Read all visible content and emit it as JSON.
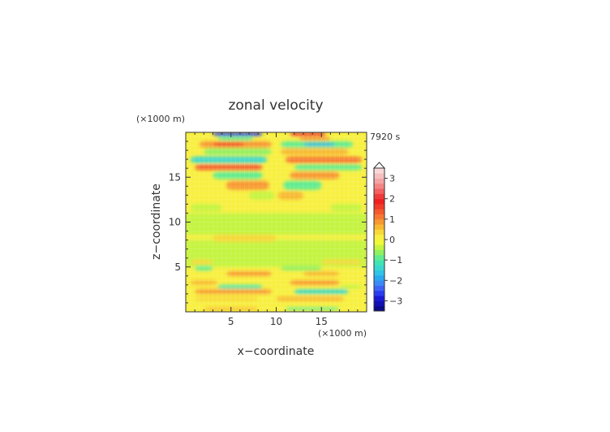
{
  "chart_data": {
    "type": "heatmap",
    "title": "zonal velocity",
    "xlabel": "x−coordinate",
    "ylabel": "z−coordinate",
    "x_unit": "(×1000 m)",
    "y_unit": "(×1000 m)",
    "time_label": "7920 s",
    "xlim": [
      0,
      20
    ],
    "ylim": [
      0,
      20
    ],
    "x_ticks": [
      5,
      10,
      15
    ],
    "y_ticks": [
      5,
      10,
      15
    ],
    "colorbar": {
      "levels": [
        -3.5,
        -3.25,
        -3,
        -2.75,
        -2.5,
        -2.25,
        -2,
        -1.75,
        -1.5,
        -1.25,
        -1,
        -0.75,
        -0.5,
        -0.25,
        0,
        0.25,
        0.5,
        0.75,
        1,
        1.25,
        1.5,
        1.75,
        2,
        2.25,
        2.5,
        2.75,
        3,
        3.25,
        3.5
      ],
      "colors": [
        "#0a0a8a",
        "#1010b4",
        "#1a1ad6",
        "#2a3cf0",
        "#3c64f6",
        "#3a8af8",
        "#2aa8f0",
        "#30c4e8",
        "#38d8d0",
        "#40e4b4",
        "#60ec90",
        "#90f060",
        "#c4f440",
        "#f0f838",
        "#f8f040",
        "#f8d838",
        "#f8b830",
        "#f89830",
        "#f87830",
        "#f45a2c",
        "#f03c28",
        "#f02020",
        "#f03a3a",
        "#f46060",
        "#f48484",
        "#f4a4a4",
        "#f6c0c0",
        "#f8d8d8"
      ],
      "tick_labels": [
        "−3",
        "−2",
        "−1",
        "0",
        "1",
        "2",
        "3"
      ],
      "tick_values": [
        -3,
        -2,
        -1,
        0,
        1,
        2,
        3
      ]
    },
    "bands": [
      {
        "z": [
          19.6,
          20
        ],
        "segments": [
          {
            "x": [
              3,
              8.5
            ],
            "v": -2.6
          },
          {
            "x": [
              11.5,
              15.5
            ],
            "v": 2.2
          }
        ]
      },
      {
        "z": [
          19.1,
          19.5
        ],
        "segments": [
          {
            "x": [
              3.5,
              7.5
            ],
            "v": -0.9
          },
          {
            "x": [
              12.5,
              16
            ],
            "v": 0.9
          }
        ]
      },
      {
        "z": [
          18.3,
          19.0
        ],
        "segments": [
          {
            "x": [
              1.5,
              9.5
            ],
            "v": 0.9
          },
          {
            "x": [
              10.5,
              18.5
            ],
            "v": -0.9
          }
        ]
      },
      {
        "z": [
          18.5,
          18.8
        ],
        "segments": [
          {
            "x": [
              3,
              6.5
            ],
            "v": 1.8
          },
          {
            "x": [
              13,
              16.5
            ],
            "v": -1.8
          }
        ]
      },
      {
        "z": [
          17.5,
          18.2
        ],
        "segments": [
          {
            "x": [
              2,
              9.5
            ],
            "v": -0.6
          },
          {
            "x": [
              10.5,
              18
            ],
            "v": 0.6
          }
        ]
      },
      {
        "z": [
          16.6,
          17.3
        ],
        "segments": [
          {
            "x": [
              0.5,
              9
            ],
            "v": -1.5
          },
          {
            "x": [
              11,
              19.5
            ],
            "v": 1.2
          }
        ]
      },
      {
        "z": [
          15.8,
          16.4
        ],
        "segments": [
          {
            "x": [
              1,
              8.5
            ],
            "v": 1.3
          },
          {
            "x": [
              12,
              19.5
            ],
            "v": -0.9
          }
        ]
      },
      {
        "z": [
          14.8,
          15.6
        ],
        "segments": [
          {
            "x": [
              3,
              8.5
            ],
            "v": -0.8
          },
          {
            "x": [
              11.5,
              17
            ],
            "v": 0.9
          }
        ]
      },
      {
        "z": [
          13.6,
          14.6
        ],
        "segments": [
          {
            "x": [
              4.5,
              9.2
            ],
            "v": 0.8
          },
          {
            "x": [
              10.8,
              15
            ],
            "v": -0.9
          }
        ]
      },
      {
        "z": [
          12.5,
          13.4
        ],
        "segments": [
          {
            "x": [
              7,
              9.8
            ],
            "v": -0.5
          },
          {
            "x": [
              10.2,
              13
            ],
            "v": 0.6
          }
        ]
      },
      {
        "z": [
          11.2,
          12.0
        ],
        "segments": [
          {
            "x": [
              0.5,
              4
            ],
            "v": -0.4
          },
          {
            "x": [
              16,
              19.5
            ],
            "v": -0.4
          }
        ]
      },
      {
        "z": [
          9.0,
          10.2
        ],
        "segments": [
          {
            "x": [
              0.5,
              3
            ],
            "v": -0.4
          },
          {
            "x": [
              6.5,
              9.5
            ],
            "v": -0.4
          },
          {
            "x": [
              11,
              16
            ],
            "v": -0.4
          }
        ]
      },
      {
        "z": [
          7.8,
          8.6
        ],
        "segments": [
          {
            "x": [
              3,
              10
            ],
            "v": 0.3
          }
        ]
      },
      {
        "z": [
          6.4,
          7.6
        ],
        "segments": [
          {
            "x": [
              0,
              7
            ],
            "v": -0.4
          },
          {
            "x": [
              11,
              16
            ],
            "v": -0.4
          }
        ]
      },
      {
        "z": [
          5.3,
          5.8
        ],
        "segments": [
          {
            "x": [
              0.5,
              3
            ],
            "v": 0.4
          },
          {
            "x": [
              15,
              19.5
            ],
            "v": 0.4
          }
        ]
      },
      {
        "z": [
          4.6,
          5.1
        ],
        "segments": [
          {
            "x": [
              1,
              3
            ],
            "v": -0.8
          },
          {
            "x": [
              10.5,
              15
            ],
            "v": -0.6
          }
        ]
      },
      {
        "z": [
          4.0,
          4.5
        ],
        "segments": [
          {
            "x": [
              4.5,
              9.5
            ],
            "v": 0.8
          },
          {
            "x": [
              13,
              17
            ],
            "v": 0.5
          }
        ]
      },
      {
        "z": [
          3.0,
          3.5
        ],
        "segments": [
          {
            "x": [
              0.5,
              3.5
            ],
            "v": 0.5
          },
          {
            "x": [
              11.5,
              17
            ],
            "v": 0.9
          }
        ]
      },
      {
        "z": [
          2.6,
          3.0
        ],
        "segments": [
          {
            "x": [
              3.5,
              8.5
            ],
            "v": -1.1
          },
          {
            "x": [
              17,
              19.5
            ],
            "v": -0.4
          }
        ]
      },
      {
        "z": [
          2.0,
          2.5
        ],
        "segments": [
          {
            "x": [
              1,
              9.5
            ],
            "v": 0.9
          },
          {
            "x": [
              12,
              18
            ],
            "v": -1.5
          }
        ]
      },
      {
        "z": [
          1.2,
          1.7
        ],
        "segments": [
          {
            "x": [
              1,
              8
            ],
            "v": 0.4
          },
          {
            "x": [
              10,
              17.5
            ],
            "v": 0.5
          }
        ]
      },
      {
        "z": [
          0.2,
          0.5
        ],
        "segments": [
          {
            "x": [
              2,
              8
            ],
            "v": 0.5
          },
          {
            "x": [
              11,
              17
            ],
            "v": -0.8
          }
        ]
      }
    ]
  }
}
